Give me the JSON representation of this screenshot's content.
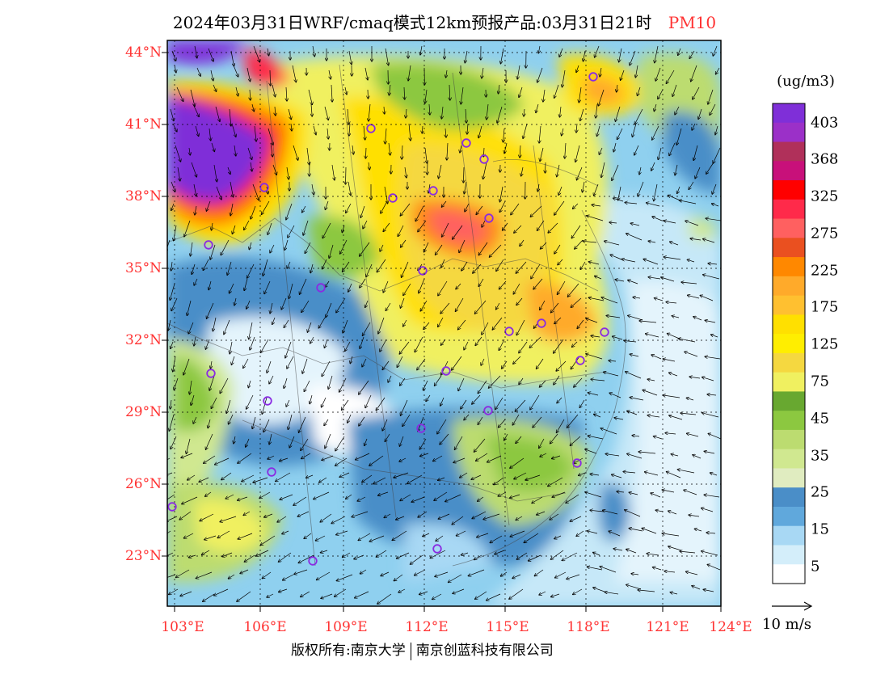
{
  "title": {
    "main": "2024年03月31日WRF/cmaq模式12km预报产品:03月31日21时",
    "variable": "PM10"
  },
  "axes": {
    "lat_labels": [
      "44°N",
      "41°N",
      "38°N",
      "35°N",
      "32°N",
      "29°N",
      "26°N",
      "23°N"
    ],
    "lon_labels": [
      "103°E",
      "106°E",
      "109°E",
      "112°E",
      "115°E",
      "118°E",
      "121°E",
      "124°E"
    ]
  },
  "legend": {
    "unit": "(ug/m3)",
    "labels": [
      "403",
      "368",
      "325",
      "275",
      "225",
      "175",
      "125",
      "75",
      "45",
      "35",
      "25",
      "15",
      "5"
    ],
    "colors": [
      "#7f2fd8",
      "#9b30c8",
      "#b0305a",
      "#c8107a",
      "#ff0000",
      "#ff2a4a",
      "#ff6060",
      "#ea5020",
      "#ff8800",
      "#ffaa2a",
      "#ffc030",
      "#ffe000",
      "#ffee00",
      "#f5d840",
      "#f0f060",
      "#68a830",
      "#8cc840",
      "#bcdc70",
      "#d0e890",
      "#e0ecc0",
      "#4a8ec8",
      "#60a8dc",
      "#a8d8f4",
      "#d4eefa",
      "#ffffff"
    ]
  },
  "wind_reference": {
    "label": "10 m/s"
  },
  "copyright": {
    "left": "版权所有:南京大学",
    "right": "南京创蓝科技有限公司"
  },
  "palette": {
    "label_red": "#ff3333",
    "frame": "#000000",
    "station_ring": "#8a2be2"
  }
}
